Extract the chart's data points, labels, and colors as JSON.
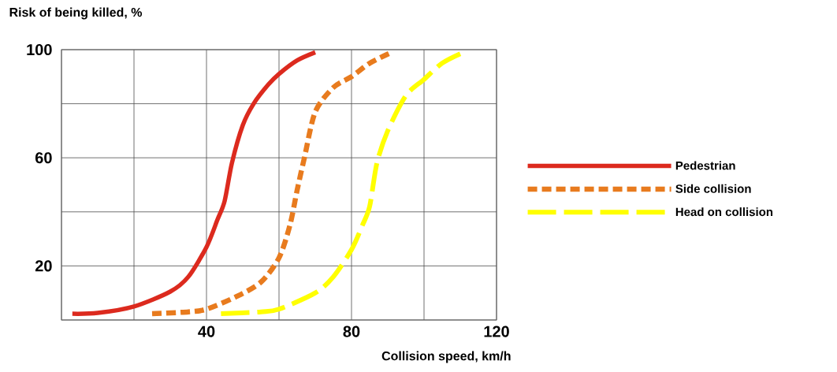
{
  "chart_data": {
    "type": "line",
    "title": "Risk of being killed, %",
    "xlabel": "Collision speed, km/h",
    "xlim": [
      0,
      120
    ],
    "ylim": [
      0,
      100
    ],
    "xticks": [
      {
        "value": 0,
        "label": null
      },
      {
        "value": 20,
        "label": null
      },
      40,
      {
        "value": 60,
        "label": null
      },
      80,
      {
        "value": 100,
        "label": null
      },
      120
    ],
    "yticks": [
      {
        "value": 0,
        "label": null
      },
      20,
      {
        "value": 40,
        "label": null
      },
      60,
      {
        "value": 80,
        "label": null
      },
      100
    ],
    "grid": true,
    "legend": "right",
    "marker": "none",
    "series": [
      {
        "name": "Pedestrian",
        "color": "#dc2a1e",
        "line_style": "solid",
        "x": [
          3,
          10,
          20,
          30,
          35,
          40,
          43,
          45,
          47,
          50,
          53,
          57,
          60,
          65,
          70
        ],
        "values": [
          2.3,
          2.6,
          5,
          10.5,
          16,
          27,
          37,
          44,
          58,
          72,
          80,
          87,
          91,
          96,
          99
        ]
      },
      {
        "name": "Side collision",
        "color": "#e87b1e",
        "line_style": "dotted",
        "x": [
          25,
          35,
          40,
          48,
          55,
          60,
          63,
          65,
          67,
          70,
          75,
          80,
          85,
          91
        ],
        "values": [
          2.3,
          3,
          4,
          8.5,
          14,
          23,
          35,
          48,
          60,
          77,
          86,
          90,
          95,
          99
        ]
      },
      {
        "name": "Head on collision",
        "color": "#ffff00",
        "line_style": "dashed",
        "x": [
          44,
          55,
          60,
          70,
          75,
          80,
          83,
          85,
          87,
          90,
          95,
          100,
          105,
          110
        ],
        "values": [
          2.3,
          3,
          4,
          10,
          16,
          26,
          35,
          42,
          58,
          70,
          83,
          89,
          95,
          98.5
        ]
      }
    ]
  }
}
